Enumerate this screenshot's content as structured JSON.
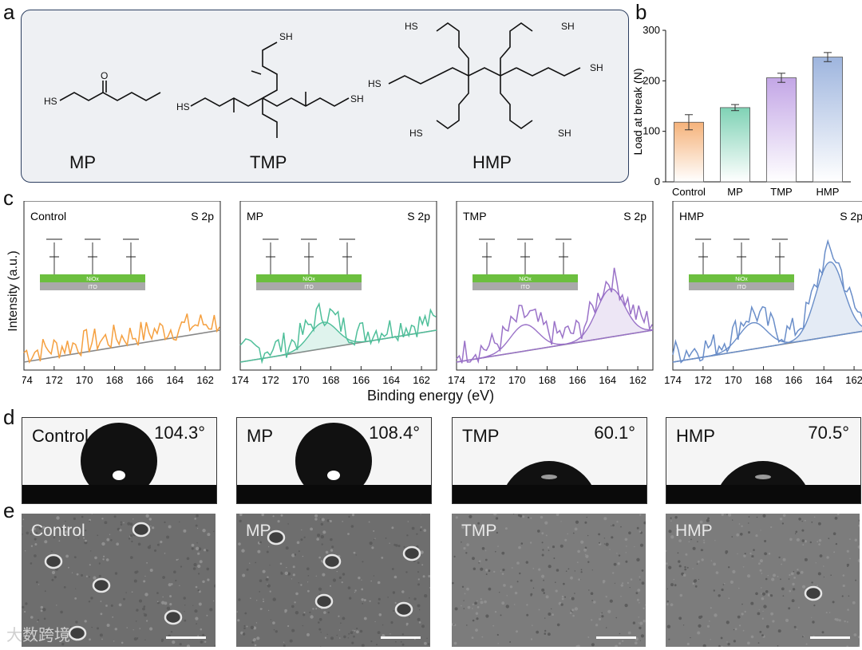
{
  "panel_labels": {
    "a": "a",
    "b": "b",
    "c": "c",
    "d": "d",
    "e": "e"
  },
  "molecules": {
    "names": [
      "MP",
      "TMP",
      "HMP"
    ],
    "atom_labels": {
      "sh": "SH",
      "hs": "HS",
      "o": "O"
    }
  },
  "chart_data": [
    {
      "type": "bar",
      "title": "",
      "categories": [
        "Control",
        "MP",
        "TMP",
        "HMP"
      ],
      "values": [
        118,
        147,
        206,
        247
      ],
      "errors": [
        15,
        6,
        9,
        9
      ],
      "colors": [
        "#f5b27a",
        "#7fd2b5",
        "#c3a6e6",
        "#9eb5de"
      ],
      "ylabel": "Load at break (N)",
      "xlabel": "",
      "ylim": [
        0,
        300
      ],
      "yticks": [
        0,
        100,
        200,
        300
      ]
    },
    {
      "type": "line",
      "xlabel": "Binding energy (eV)",
      "ylabel": "Intensity (a.u.)",
      "xlim": [
        174,
        161
      ],
      "xticks": [
        174,
        172,
        170,
        168,
        166,
        164,
        162
      ],
      "panels": [
        {
          "name": "Control",
          "label": "S 2p",
          "color": "#f5a040",
          "peaks": []
        },
        {
          "name": "MP",
          "label": "S 2p",
          "color": "#4fbf9a",
          "peaks": [
            {
              "center": 168.5,
              "height": 0.3
            }
          ]
        },
        {
          "name": "TMP",
          "label": "S 2p",
          "color": "#9a72c8",
          "peaks": [
            {
              "center": 169.5,
              "height": 0.3
            },
            {
              "center": 163.8,
              "height": 0.55
            }
          ]
        },
        {
          "name": "HMP",
          "label": "S 2p",
          "color": "#6a8ec9",
          "peaks": [
            {
              "center": 168.7,
              "height": 0.3
            },
            {
              "center": 163.6,
              "height": 0.85
            }
          ]
        }
      ]
    }
  ],
  "inset_labels": {
    "nio": "NiOx",
    "ito": "ITO"
  },
  "contact_angle": [
    {
      "name": "Control",
      "angle": "104.3°",
      "deg": 104.3
    },
    {
      "name": "MP",
      "angle": "108.4°",
      "deg": 108.4
    },
    {
      "name": "TMP",
      "angle": "60.1°",
      "deg": 60.1
    },
    {
      "name": "HMP",
      "angle": "70.5°",
      "deg": 70.5
    }
  ],
  "sem": [
    {
      "name": "Control"
    },
    {
      "name": "MP"
    },
    {
      "name": "TMP"
    },
    {
      "name": "HMP"
    }
  ],
  "watermark": "大数跨境"
}
